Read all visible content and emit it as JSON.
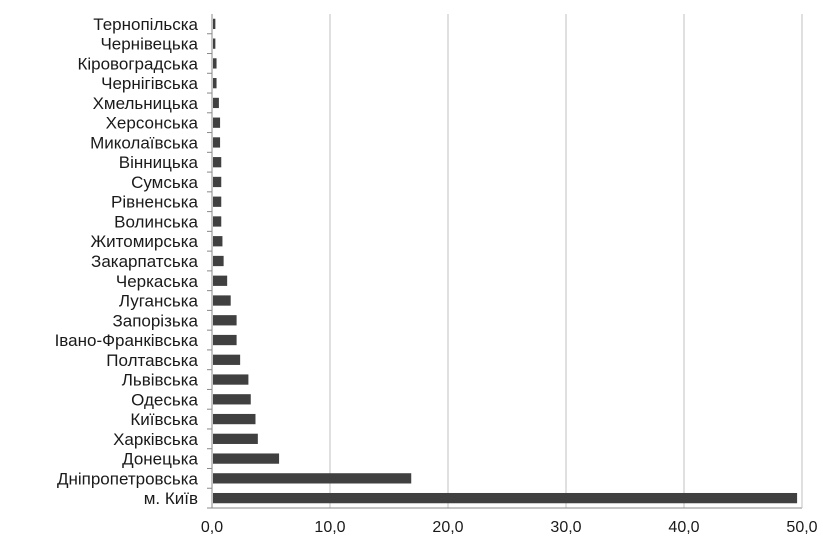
{
  "chart_data": {
    "type": "bar",
    "orientation": "horizontal",
    "categories": [
      "м. Київ",
      "Дніпропетровська",
      "Донецька",
      "Харківська",
      "Київська",
      "Одеська",
      "Львівська",
      "Полтавська",
      "Івано-Франківська",
      "Запорізька",
      "Луганська",
      "Черкаська",
      "Закарпатська",
      "Житомирська",
      "Волинська",
      "Рівненська",
      "Сумська",
      "Вінницька",
      "Миколаївська",
      "Херсонська",
      "Хмельницька",
      "Чернігівська",
      "Кіровоградська",
      "Чернівецька",
      "Тернопільска"
    ],
    "values": [
      49.5,
      16.8,
      5.6,
      3.8,
      3.6,
      3.2,
      3.0,
      2.3,
      2.0,
      2.0,
      1.5,
      1.2,
      0.9,
      0.8,
      0.7,
      0.7,
      0.7,
      0.7,
      0.6,
      0.6,
      0.5,
      0.3,
      0.3,
      0.2,
      0.2
    ],
    "xlim": [
      0,
      50
    ],
    "xticks": [
      "0,0",
      "10,0",
      "20,0",
      "30,0",
      "40,0",
      "50,0"
    ],
    "grid": "vertical",
    "colors": {
      "bar": "#404040",
      "grid": "#c0c0c0",
      "axis": "#888888",
      "text": "#1a1a1a"
    }
  }
}
